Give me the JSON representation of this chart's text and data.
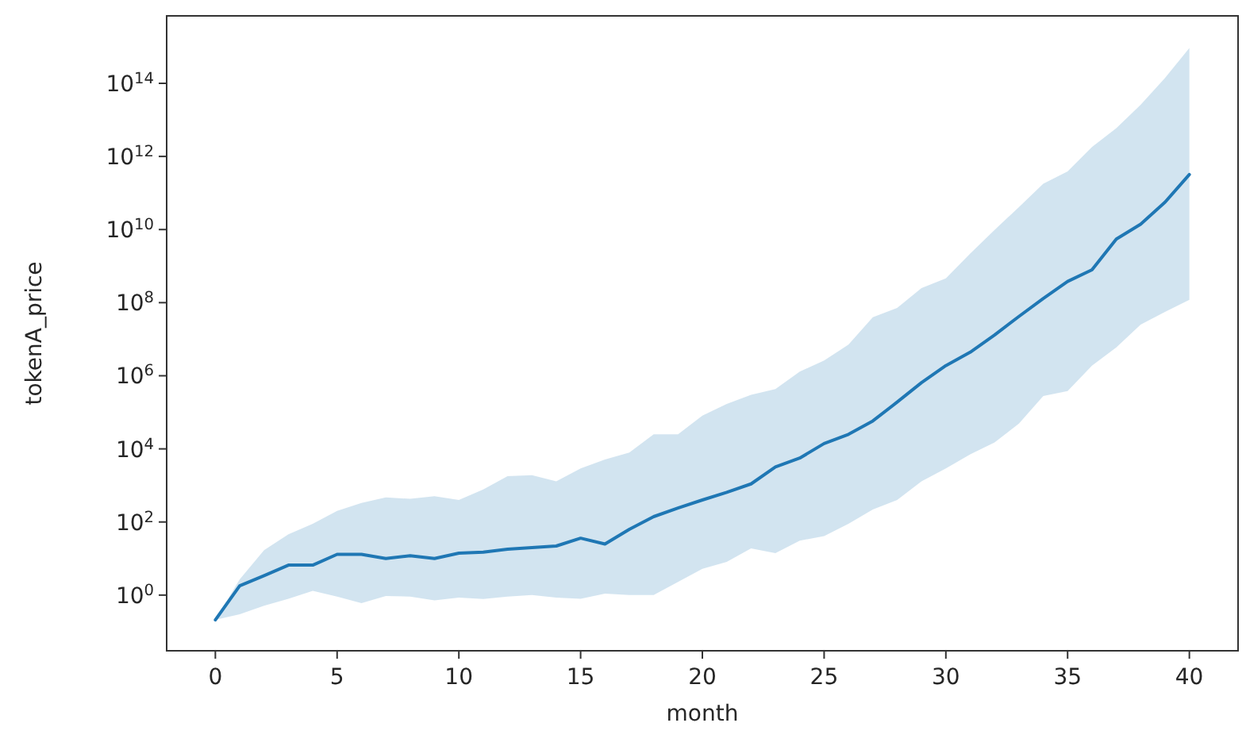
{
  "chart_data": {
    "type": "line",
    "xlabel": "month",
    "ylabel": "tokenA_price",
    "log": "y",
    "grid": false,
    "marker": "none",
    "line_style": "solid",
    "x": [
      0,
      1,
      2,
      3,
      4,
      5,
      6,
      7,
      8,
      9,
      10,
      11,
      12,
      13,
      14,
      15,
      16,
      17,
      18,
      19,
      20,
      21,
      22,
      23,
      24,
      25,
      26,
      27,
      28,
      29,
      30,
      31,
      32,
      33,
      34,
      35,
      36,
      37,
      38,
      39,
      40
    ],
    "xlim": [
      -2,
      42
    ],
    "xticks": [
      0,
      5,
      10,
      15,
      20,
      25,
      30,
      35,
      40
    ],
    "ylim": [
      0.03,
      7000000000000000.0
    ],
    "yticks": [
      {
        "value": 1,
        "label": "10$^{0}$"
      },
      {
        "value": 100,
        "label": "10$^{2}$"
      },
      {
        "value": 10000,
        "label": "10$^{4}$"
      },
      {
        "value": 1000000,
        "label": "10$^{6}$"
      },
      {
        "value": 100000000,
        "label": "10$^{8}$"
      },
      {
        "value": 10000000000,
        "label": "10$^{10}$"
      },
      {
        "value": 1000000000000,
        "label": "10$^{12}$"
      },
      {
        "value": 100000000000000,
        "label": "10$^{14}$"
      }
    ],
    "series": [
      {
        "color": "#1f77b4",
        "values": [
          0.21,
          1.8,
          3.4,
          6.6,
          6.6,
          13,
          13,
          10,
          12,
          10,
          14,
          15,
          18,
          20,
          22,
          36,
          25,
          63,
          140,
          240,
          400,
          650,
          1100,
          3200,
          5600,
          14000.0,
          25000.0,
          58000.0,
          190000.0,
          650000.0,
          1900000.0,
          4400000.0,
          13000000.0,
          42000000.0,
          130000000.0,
          380000000.0,
          790000000.0,
          5500000000.0,
          14000000000.0,
          56000000000.0,
          320000000000.0
        ],
        "lower": [
          0.21,
          0.3,
          0.51,
          0.79,
          1.3,
          0.91,
          0.6,
          0.95,
          0.91,
          0.72,
          0.85,
          0.78,
          0.91,
          1.0,
          0.85,
          0.79,
          1.1,
          1.0,
          1.0,
          2.3,
          5.2,
          8.1,
          19,
          14,
          31,
          41,
          89,
          220,
          400,
          1300,
          2900,
          7100,
          15000.0,
          49000.0,
          280000.0,
          380000.0,
          1900000.0,
          6000000.0,
          25000000.0,
          56000000.0,
          120000000.0
        ],
        "upper": [
          0.21,
          2.7,
          17,
          46,
          89,
          200,
          330,
          470,
          430,
          510,
          400,
          780,
          1800,
          1900,
          1300,
          2900,
          5100,
          7900,
          25000.0,
          25000.0,
          81000.0,
          170000.0,
          300000.0,
          430000.0,
          1300000.0,
          2600000.0,
          7100000.0,
          40000000.0,
          72000000.0,
          250000000.0,
          460000000.0,
          2200000000.0,
          9800000000.0,
          41000000000.0,
          180000000000.0,
          390000000000.0,
          1800000000000.0,
          5900000000000.0,
          26000000000000.0,
          140000000000000.0,
          930000000000000.0
        ]
      }
    ]
  }
}
